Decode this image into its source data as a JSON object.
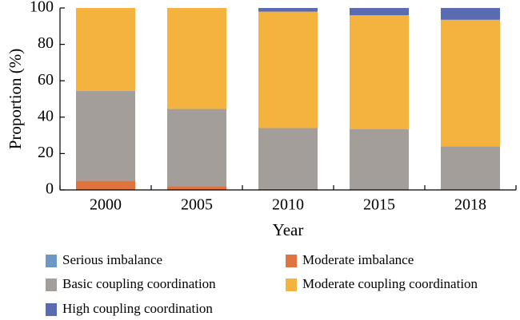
{
  "chart_data": {
    "type": "bar",
    "stacked": true,
    "categories": [
      "2000",
      "2005",
      "2010",
      "2015",
      "2018"
    ],
    "series": [
      {
        "name": "Serious imbalance",
        "color": "#6e97c6",
        "values": [
          0,
          0,
          0,
          0,
          0
        ]
      },
      {
        "name": "Moderate imbalance",
        "color": "#e07441",
        "values": [
          5,
          2,
          0.5,
          0,
          0
        ]
      },
      {
        "name": "Basic coupling coordination",
        "color": "#a39e9a",
        "values": [
          49.5,
          42.5,
          33.5,
          33.5,
          24
        ]
      },
      {
        "name": "Moderate coupling coordination",
        "color": "#f4b23f",
        "values": [
          45.5,
          55.5,
          64,
          62.5,
          69.5
        ]
      },
      {
        "name": "High coupling coordination",
        "color": "#5b6bb2",
        "values": [
          0,
          0,
          2,
          4,
          6.5
        ]
      }
    ],
    "xlabel": "Year",
    "ylabel": "Proportion (%)",
    "ylim": [
      0,
      100
    ],
    "yticks": [
      "0",
      "20",
      "40",
      "60",
      "80",
      "100"
    ],
    "grid": false,
    "legend_position": "bottom"
  }
}
